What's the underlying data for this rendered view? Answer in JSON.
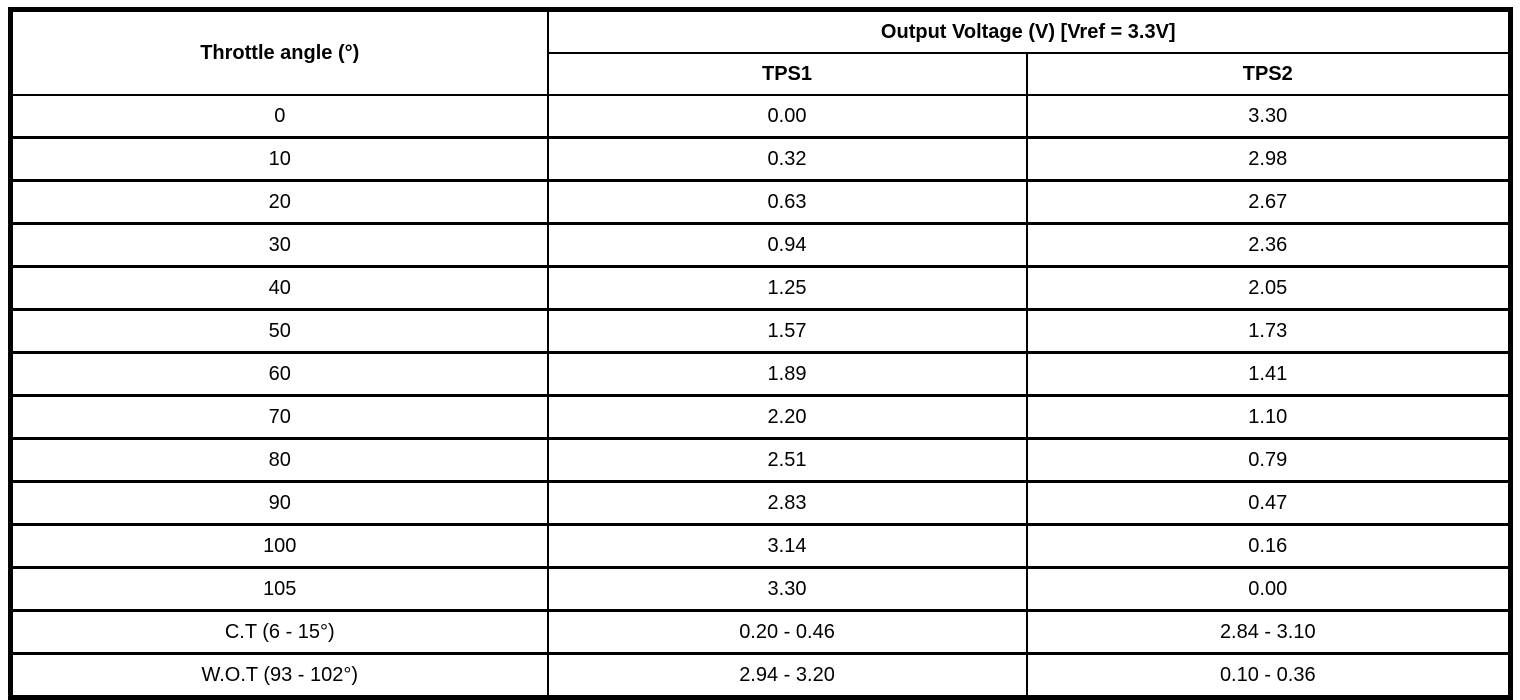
{
  "table": {
    "col1_header": "Throttle angle (°)",
    "group_header": "Output Voltage (V) [Vref = 3.3V]",
    "sub_headers": [
      "TPS1",
      "TPS2"
    ],
    "rows": [
      {
        "angle": "0",
        "tps1": "0.00",
        "tps2": "3.30"
      },
      {
        "angle": "10",
        "tps1": "0.32",
        "tps2": "2.98"
      },
      {
        "angle": "20",
        "tps1": "0.63",
        "tps2": "2.67"
      },
      {
        "angle": "30",
        "tps1": "0.94",
        "tps2": "2.36"
      },
      {
        "angle": "40",
        "tps1": "1.25",
        "tps2": "2.05"
      },
      {
        "angle": "50",
        "tps1": "1.57",
        "tps2": "1.73"
      },
      {
        "angle": "60",
        "tps1": "1.89",
        "tps2": "1.41"
      },
      {
        "angle": "70",
        "tps1": "2.20",
        "tps2": "1.10"
      },
      {
        "angle": "80",
        "tps1": "2.51",
        "tps2": "0.79"
      },
      {
        "angle": "90",
        "tps1": "2.83",
        "tps2": "0.47"
      },
      {
        "angle": "100",
        "tps1": "3.14",
        "tps2": "0.16"
      },
      {
        "angle": "105",
        "tps1": "3.30",
        "tps2": "0.00"
      },
      {
        "angle": "C.T (6 - 15°)",
        "tps1": "0.20 - 0.46",
        "tps2": "2.84 - 3.10"
      },
      {
        "angle": "W.O.T (93 - 102°)",
        "tps1": "2.94 - 3.20",
        "tps2": "0.10 - 0.36"
      }
    ],
    "colors": {
      "border": "#000000",
      "background": "#ffffff",
      "text": "#000000"
    }
  }
}
